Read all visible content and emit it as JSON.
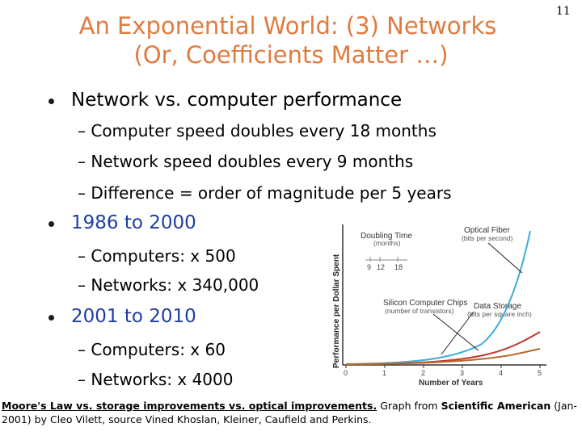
{
  "slide": {
    "title_line1": "An Exponential World: (3) Networks",
    "title_line2": "(Or, Coefficients Matter …)",
    "page_number": "11"
  },
  "bullets": [
    {
      "text": "Network vs. computer performance",
      "subs": [
        "– Computer speed doubles every 18 months",
        "– Network speed doubles every 9 months",
        "– Difference = order of magnitude per 5 years"
      ]
    },
    {
      "text": "1986 to 2000",
      "subs": [
        "– Computers: x 500",
        "– Networks: x 340,000"
      ]
    },
    {
      "text": "2001 to 2010",
      "subs": [
        "– Computers: x 60",
        "– Networks: x 4000"
      ]
    }
  ],
  "chart": {
    "ylabel": "Performance per Dollar Spent",
    "xlabel": "Number of Years",
    "x_ticks": [
      "0",
      "1",
      "2",
      "3",
      "4",
      "5"
    ],
    "doubling_title": "Doubling Time",
    "doubling_sub": "(months)",
    "doubling_ticks": [
      "9",
      "12",
      "18"
    ],
    "fiber_label": "Optical Fiber",
    "fiber_sub": "(bits per second)",
    "chips_label": "Silicon Computer Chips",
    "chips_sub": "(number of transistors)",
    "storage_label": "Data Storage",
    "storage_sub": "(bits per square inch)",
    "colors": {
      "fiber": "#3aaed8",
      "storage": "#c0392b",
      "chips": "#b86a2a"
    }
  },
  "caption": {
    "part1": "Moore's Law vs. storage improvements vs. optical improvements.",
    "part2": " Graph from ",
    "part3": "Scientific American",
    "part4": " (Jan-2001) by Cleo Vilett, source Vined Khoslan, Kleiner, Caufield and Perkins."
  }
}
